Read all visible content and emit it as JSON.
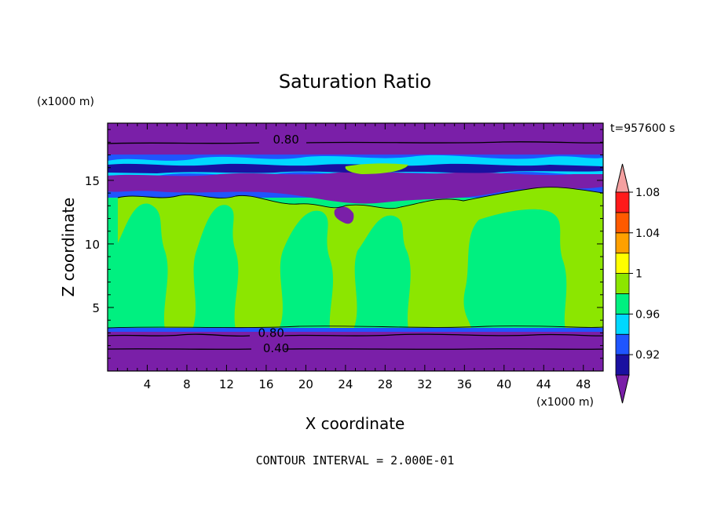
{
  "chart_data": {
    "type": "heatmap",
    "title": "Saturation Ratio",
    "xlabel": "X coordinate",
    "ylabel": "Z coordinate",
    "x_unit": "(x1000 m)",
    "y_unit": "(x1000 m)",
    "time_label": "t=957600 s",
    "footer": "CONTOUR INTERVAL = 2.000E-01",
    "xlim": [
      0,
      50
    ],
    "ylim": [
      0,
      19.5
    ],
    "x_ticks": [
      "4",
      "8",
      "12",
      "16",
      "20",
      "24",
      "28",
      "32",
      "36",
      "40",
      "44",
      "48"
    ],
    "y_ticks": [
      "5",
      "10",
      "15"
    ],
    "colorbar": {
      "levels": [
        "0.92",
        "0.96",
        "1",
        "1.04",
        "1.08"
      ],
      "colors": [
        "#7a1fa8",
        "#1a10a0",
        "#1f55ff",
        "#00d8ff",
        "#00f080",
        "#8ce600",
        "#ffff00",
        "#ffa000",
        "#ff5a00",
        "#ff1a1a",
        "#f4a0a0"
      ]
    },
    "contour_labels": [
      {
        "value": "0.80",
        "x": 18,
        "z": 18.2
      },
      {
        "value": "0.80",
        "x": 16.5,
        "z": 3.0
      },
      {
        "value": "0.40",
        "x": 17,
        "z": 1.8
      }
    ],
    "layers": [
      {
        "z_from": 0,
        "z_to": 3.3,
        "band": "below 0.92"
      },
      {
        "z_from": 3.3,
        "z_to": 13.0,
        "band": "0.96 - 1.00"
      },
      {
        "z_from": 13.0,
        "z_to": 17.5,
        "band": "0.92 - 0.96"
      },
      {
        "z_from": 17.5,
        "z_to": 19.5,
        "band": "below 0.92"
      }
    ]
  }
}
